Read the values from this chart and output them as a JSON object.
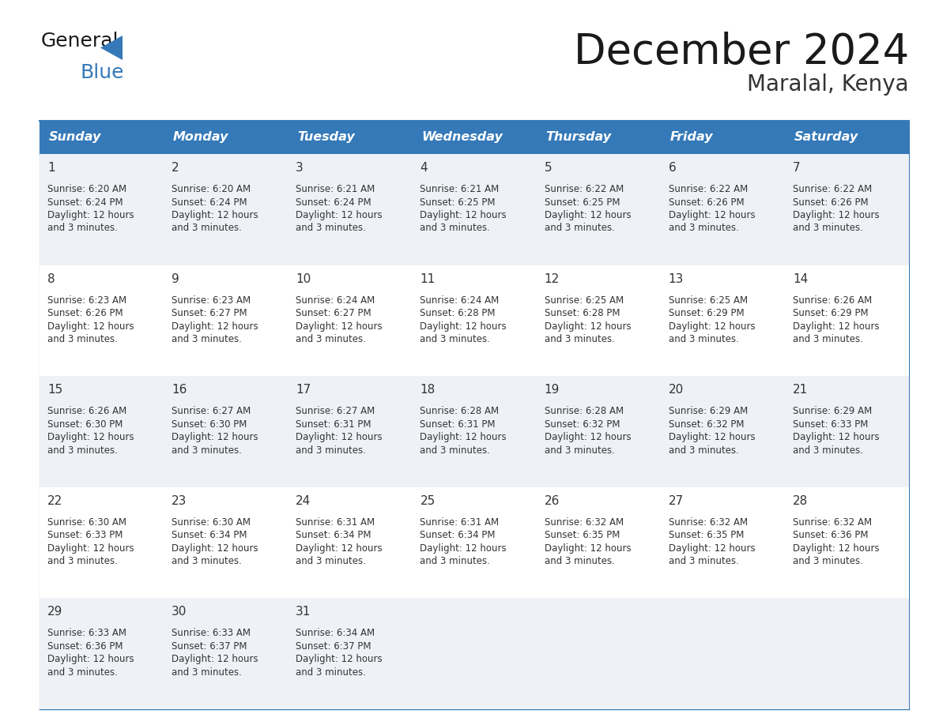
{
  "title": "December 2024",
  "subtitle": "Maralal, Kenya",
  "header_bg_color": "#3579B8",
  "header_text_color": "#FFFFFF",
  "cell_bg_even": "#EEF2F7",
  "cell_bg_odd": "#FFFFFF",
  "border_color": "#3579B8",
  "text_color": "#333333",
  "day_names": [
    "Sunday",
    "Monday",
    "Tuesday",
    "Wednesday",
    "Thursday",
    "Friday",
    "Saturday"
  ],
  "days_data": [
    {
      "day": 1,
      "col": 0,
      "row": 0,
      "sunrise": "6:20 AM",
      "sunset": "6:24 PM"
    },
    {
      "day": 2,
      "col": 1,
      "row": 0,
      "sunrise": "6:20 AM",
      "sunset": "6:24 PM"
    },
    {
      "day": 3,
      "col": 2,
      "row": 0,
      "sunrise": "6:21 AM",
      "sunset": "6:24 PM"
    },
    {
      "day": 4,
      "col": 3,
      "row": 0,
      "sunrise": "6:21 AM",
      "sunset": "6:25 PM"
    },
    {
      "day": 5,
      "col": 4,
      "row": 0,
      "sunrise": "6:22 AM",
      "sunset": "6:25 PM"
    },
    {
      "day": 6,
      "col": 5,
      "row": 0,
      "sunrise": "6:22 AM",
      "sunset": "6:26 PM"
    },
    {
      "day": 7,
      "col": 6,
      "row": 0,
      "sunrise": "6:22 AM",
      "sunset": "6:26 PM"
    },
    {
      "day": 8,
      "col": 0,
      "row": 1,
      "sunrise": "6:23 AM",
      "sunset": "6:26 PM"
    },
    {
      "day": 9,
      "col": 1,
      "row": 1,
      "sunrise": "6:23 AM",
      "sunset": "6:27 PM"
    },
    {
      "day": 10,
      "col": 2,
      "row": 1,
      "sunrise": "6:24 AM",
      "sunset": "6:27 PM"
    },
    {
      "day": 11,
      "col": 3,
      "row": 1,
      "sunrise": "6:24 AM",
      "sunset": "6:28 PM"
    },
    {
      "day": 12,
      "col": 4,
      "row": 1,
      "sunrise": "6:25 AM",
      "sunset": "6:28 PM"
    },
    {
      "day": 13,
      "col": 5,
      "row": 1,
      "sunrise": "6:25 AM",
      "sunset": "6:29 PM"
    },
    {
      "day": 14,
      "col": 6,
      "row": 1,
      "sunrise": "6:26 AM",
      "sunset": "6:29 PM"
    },
    {
      "day": 15,
      "col": 0,
      "row": 2,
      "sunrise": "6:26 AM",
      "sunset": "6:30 PM"
    },
    {
      "day": 16,
      "col": 1,
      "row": 2,
      "sunrise": "6:27 AM",
      "sunset": "6:30 PM"
    },
    {
      "day": 17,
      "col": 2,
      "row": 2,
      "sunrise": "6:27 AM",
      "sunset": "6:31 PM"
    },
    {
      "day": 18,
      "col": 3,
      "row": 2,
      "sunrise": "6:28 AM",
      "sunset": "6:31 PM"
    },
    {
      "day": 19,
      "col": 4,
      "row": 2,
      "sunrise": "6:28 AM",
      "sunset": "6:32 PM"
    },
    {
      "day": 20,
      "col": 5,
      "row": 2,
      "sunrise": "6:29 AM",
      "sunset": "6:32 PM"
    },
    {
      "day": 21,
      "col": 6,
      "row": 2,
      "sunrise": "6:29 AM",
      "sunset": "6:33 PM"
    },
    {
      "day": 22,
      "col": 0,
      "row": 3,
      "sunrise": "6:30 AM",
      "sunset": "6:33 PM"
    },
    {
      "day": 23,
      "col": 1,
      "row": 3,
      "sunrise": "6:30 AM",
      "sunset": "6:34 PM"
    },
    {
      "day": 24,
      "col": 2,
      "row": 3,
      "sunrise": "6:31 AM",
      "sunset": "6:34 PM"
    },
    {
      "day": 25,
      "col": 3,
      "row": 3,
      "sunrise": "6:31 AM",
      "sunset": "6:34 PM"
    },
    {
      "day": 26,
      "col": 4,
      "row": 3,
      "sunrise": "6:32 AM",
      "sunset": "6:35 PM"
    },
    {
      "day": 27,
      "col": 5,
      "row": 3,
      "sunrise": "6:32 AM",
      "sunset": "6:35 PM"
    },
    {
      "day": 28,
      "col": 6,
      "row": 3,
      "sunrise": "6:32 AM",
      "sunset": "6:36 PM"
    },
    {
      "day": 29,
      "col": 0,
      "row": 4,
      "sunrise": "6:33 AM",
      "sunset": "6:36 PM"
    },
    {
      "day": 30,
      "col": 1,
      "row": 4,
      "sunrise": "6:33 AM",
      "sunset": "6:37 PM"
    },
    {
      "day": 31,
      "col": 2,
      "row": 4,
      "sunrise": "6:34 AM",
      "sunset": "6:37 PM"
    }
  ],
  "num_weeks": 5,
  "logo_general_color": "#1a1a1a",
  "logo_blue_color": "#3579B8"
}
